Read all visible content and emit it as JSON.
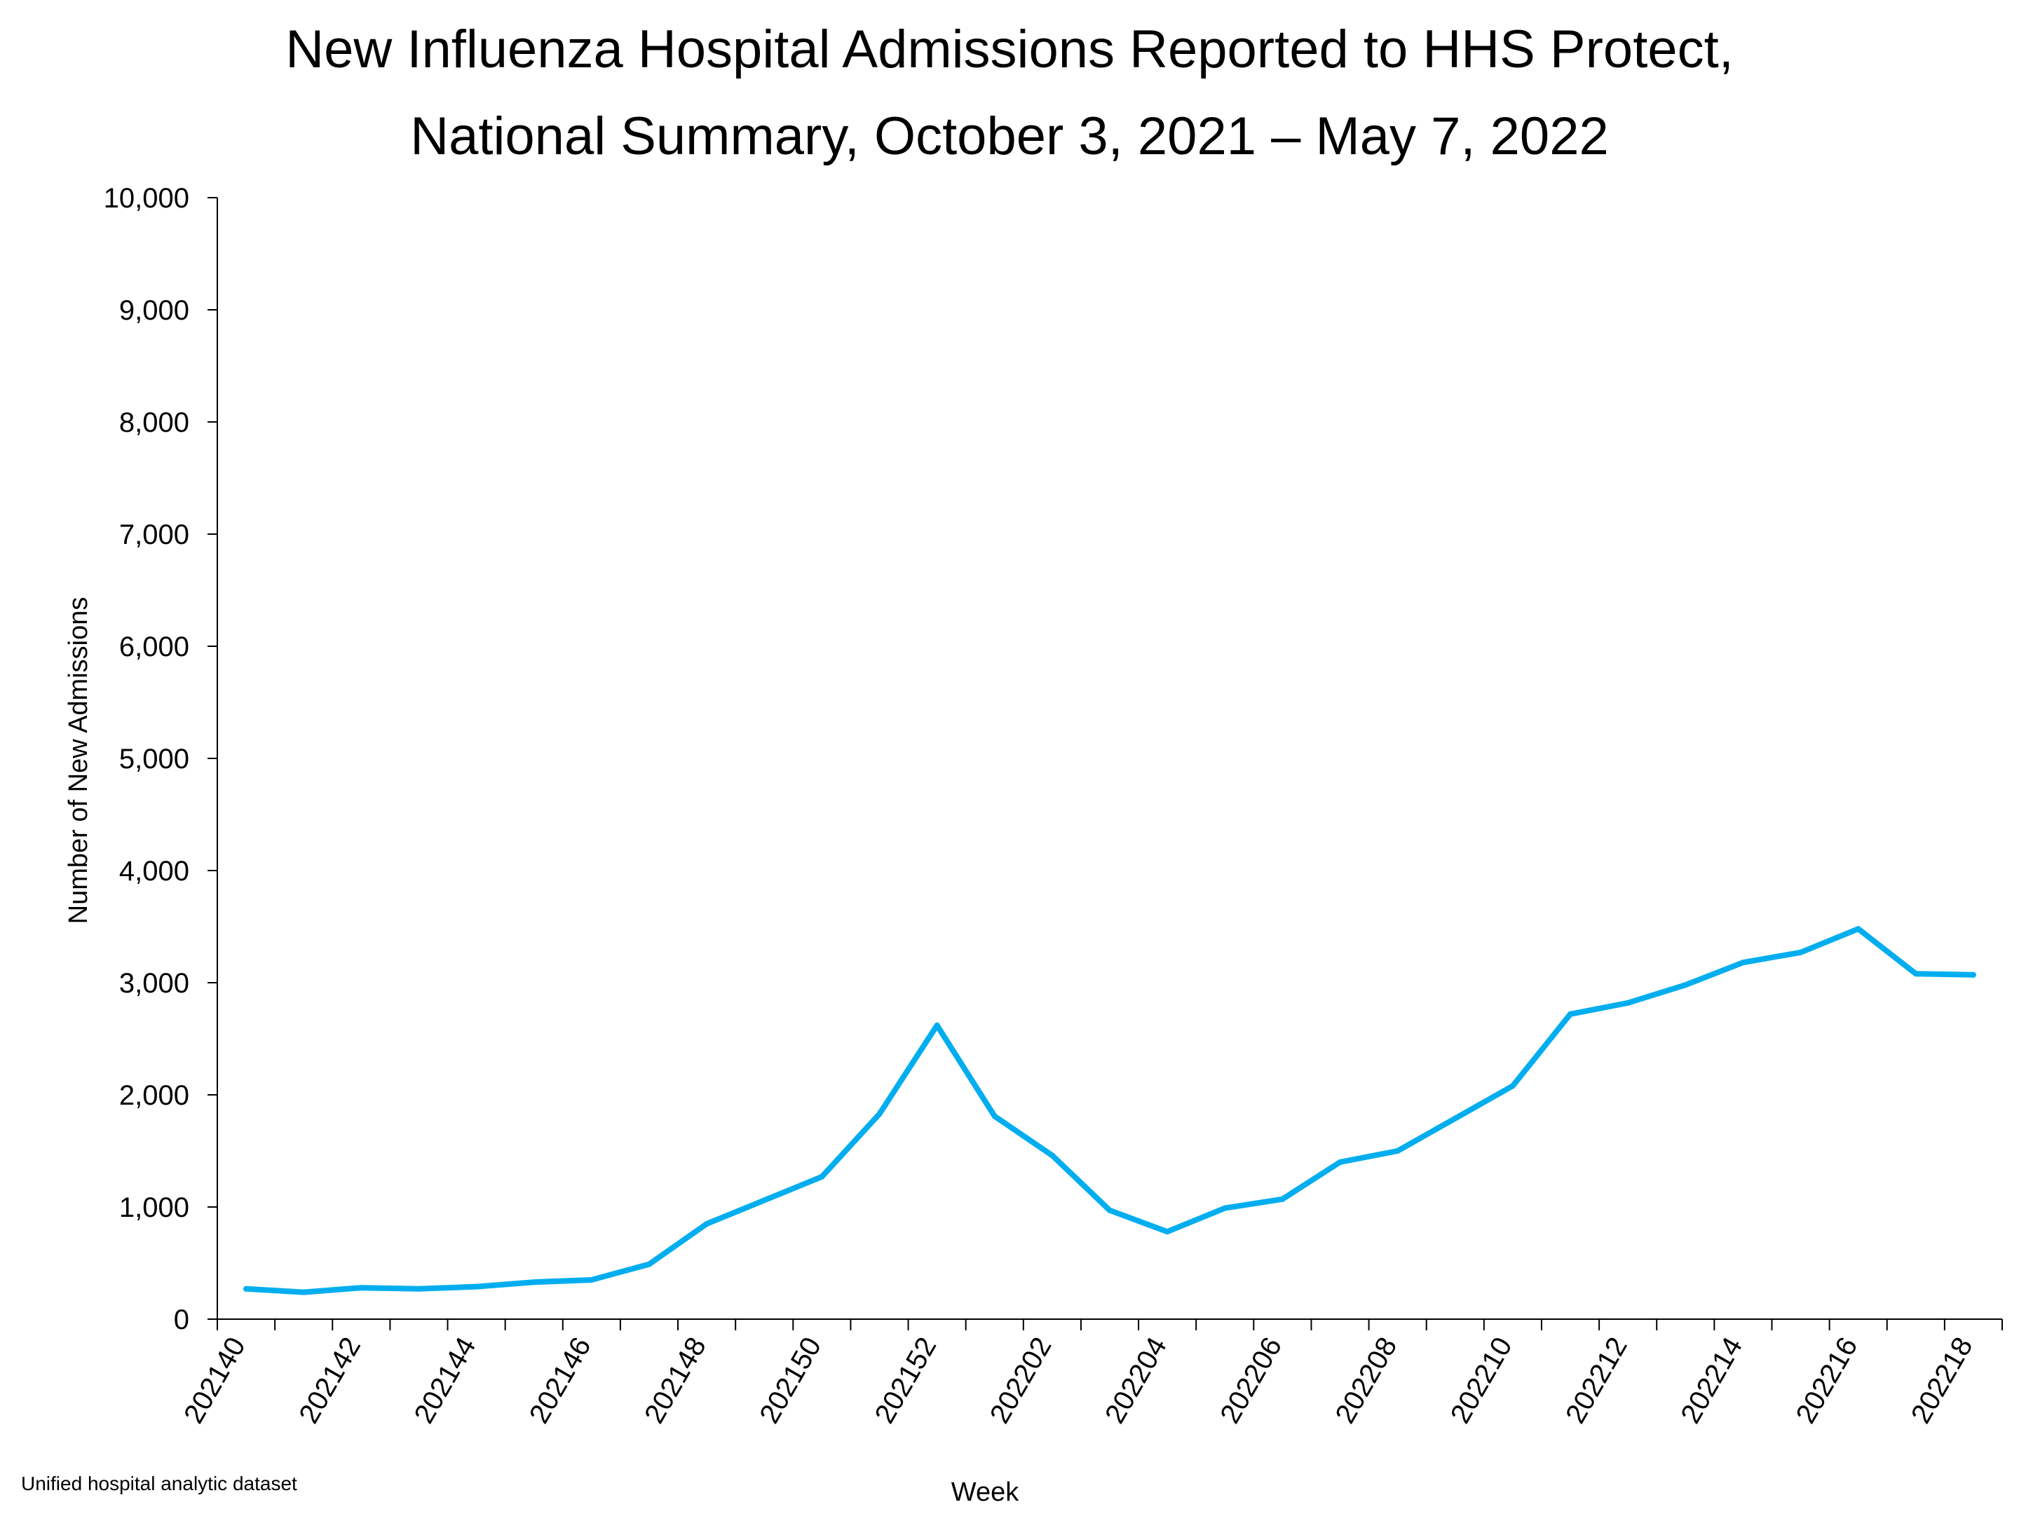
{
  "chart_data": {
    "type": "line",
    "title_line1": "New Influenza Hospital Admissions Reported to HHS Protect,",
    "title_line2": "National Summary, October 3, 2021 – May 7, 2022",
    "xlabel": "Week",
    "ylabel": "Number of New Admissions",
    "source": "Unified hospital analytic dataset",
    "ylim": [
      0,
      10000
    ],
    "yticks": [
      "0",
      "1,000",
      "2,000",
      "3,000",
      "4,000",
      "5,000",
      "6,000",
      "7,000",
      "8,000",
      "9,000",
      "10,000"
    ],
    "xticklabels": [
      "202140",
      "202142",
      "202144",
      "202146",
      "202148",
      "202150",
      "202152",
      "202202",
      "202204",
      "202206",
      "202208",
      "202210",
      "202212",
      "202214",
      "202216",
      "202218"
    ],
    "color": "#00AEEF",
    "grid": false,
    "series": [
      {
        "values": [
          270,
          240,
          280,
          270,
          290,
          330,
          350,
          490,
          850,
          1060,
          1270,
          1830,
          2620,
          1810,
          1460,
          970,
          780,
          990,
          1070,
          1400,
          1500,
          1790,
          2080,
          2720,
          2820,
          2980,
          3180,
          3270,
          3480,
          3080,
          3070
        ]
      }
    ]
  }
}
